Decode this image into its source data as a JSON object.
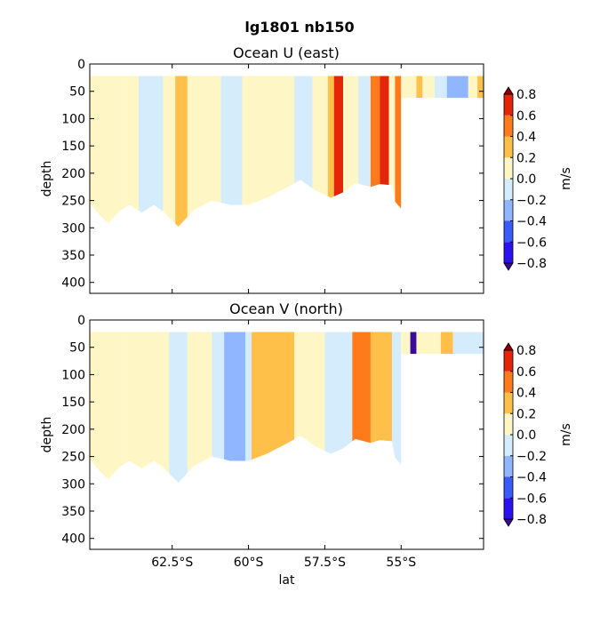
{
  "figure": {
    "suptitle": "lg1801 nb150"
  },
  "colors": {
    "levels": [
      -0.8,
      -0.6,
      -0.4,
      -0.2,
      0.0,
      0.2,
      0.4,
      0.6,
      0.8
    ],
    "bands": [
      "#2b13f0",
      "#3a5cf8",
      "#8fb6ff",
      "#d4ecfb",
      "#fff6c6",
      "#ffc04a",
      "#ff7a1a",
      "#e2260a"
    ],
    "under": "#3a0a9a",
    "over": "#8b0000"
  },
  "chart_data": [
    {
      "type": "heatmap",
      "title": "Ocean U (east)",
      "xlabel": "",
      "ylabel": "depth",
      "xlim": [
        -65.2,
        -52.3
      ],
      "ylim": [
        420,
        0
      ],
      "x_ticks": [
        -62.5,
        -60,
        -57.5,
        -55
      ],
      "x_ticklabels": [
        "",
        "",
        "",
        ""
      ],
      "y_ticks": [
        0,
        50,
        100,
        150,
        200,
        250,
        300,
        350,
        400
      ],
      "y_ticklabels": [
        "0",
        "50",
        "100",
        "150",
        "200",
        "250",
        "300",
        "350",
        "400"
      ],
      "colorbar": {
        "label": "m/s",
        "ticklabels": [
          "0.8",
          "0.6",
          "0.4",
          "0.2",
          "0.0",
          "−0.2",
          "−0.4",
          "−0.6",
          "−0.8"
        ],
        "extend": "both"
      },
      "top_depth": 22,
      "bottom_depth": [
        [
          -65.2,
          255
        ],
        [
          -64.9,
          275
        ],
        [
          -64.6,
          292
        ],
        [
          -64.2,
          268
        ],
        [
          -63.9,
          258
        ],
        [
          -63.5,
          272
        ],
        [
          -63.1,
          258
        ],
        [
          -62.8,
          270
        ],
        [
          -62.3,
          298
        ],
        [
          -61.8,
          268
        ],
        [
          -61.2,
          250
        ],
        [
          -60.6,
          258
        ],
        [
          -60.0,
          258
        ],
        [
          -59.4,
          245
        ],
        [
          -58.8,
          228
        ],
        [
          -58.3,
          212
        ],
        [
          -57.8,
          232
        ],
        [
          -57.3,
          245
        ],
        [
          -56.9,
          235
        ],
        [
          -56.5,
          218
        ],
        [
          -56.0,
          225
        ],
        [
          -55.7,
          220
        ],
        [
          -55.3,
          222
        ],
        [
          -55.2,
          252
        ],
        [
          -55.0,
          265
        ]
      ],
      "shallow_section": {
        "xrange": [
          -55.0,
          -52.3
        ],
        "bottom_depth": 62
      },
      "bands": [
        {
          "x": [
            -65.2,
            -64.1
          ],
          "v": 0.1
        },
        {
          "x": [
            -64.1,
            -63.6
          ],
          "v": 0.1
        },
        {
          "x": [
            -63.6,
            -62.8
          ],
          "v": -0.1
        },
        {
          "x": [
            -62.8,
            -62.4
          ],
          "v": 0.1
        },
        {
          "x": [
            -62.4,
            -62.0
          ],
          "v": 0.3
        },
        {
          "x": [
            -62.0,
            -60.9
          ],
          "v": 0.1
        },
        {
          "x": [
            -60.9,
            -60.2
          ],
          "v": -0.1
        },
        {
          "x": [
            -60.2,
            -59.2
          ],
          "v": 0.1
        },
        {
          "x": [
            -59.2,
            -58.5
          ],
          "v": 0.1
        },
        {
          "x": [
            -58.5,
            -57.9
          ],
          "v": -0.1
        },
        {
          "x": [
            -57.9,
            -57.4
          ],
          "v": 0.1
        },
        {
          "x": [
            -57.4,
            -57.2
          ],
          "v": 0.3
        },
        {
          "x": [
            -57.2,
            -56.9
          ],
          "v": 0.7
        },
        {
          "x": [
            -56.9,
            -56.4
          ],
          "v": 0.1
        },
        {
          "x": [
            -56.4,
            -56.0
          ],
          "v": -0.1
        },
        {
          "x": [
            -56.0,
            -55.7
          ],
          "v": 0.5
        },
        {
          "x": [
            -55.7,
            -55.4
          ],
          "v": 0.7
        },
        {
          "x": [
            -55.4,
            -55.0
          ],
          "v": 0.1
        },
        {
          "x": [
            -55.2,
            -55.0
          ],
          "v": 0.5
        }
      ],
      "shallow_bands": [
        {
          "x": [
            -55.0,
            -54.5
          ],
          "v": 0.1
        },
        {
          "x": [
            -54.5,
            -54.3
          ],
          "v": 0.3
        },
        {
          "x": [
            -54.3,
            -53.9
          ],
          "v": 0.1
        },
        {
          "x": [
            -53.9,
            -53.5
          ],
          "v": -0.1
        },
        {
          "x": [
            -53.5,
            -52.8
          ],
          "v": -0.3
        },
        {
          "x": [
            -52.8,
            -52.5
          ],
          "v": 0.1
        },
        {
          "x": [
            -52.5,
            -52.3
          ],
          "v": 0.3
        }
      ]
    },
    {
      "type": "heatmap",
      "title": "Ocean V (north)",
      "xlabel": "lat",
      "ylabel": "depth",
      "xlim": [
        -65.2,
        -52.3
      ],
      "ylim": [
        420,
        0
      ],
      "x_ticks": [
        -62.5,
        -60,
        -57.5,
        -55
      ],
      "x_ticklabels": [
        "62.5°S",
        "60°S",
        "57.5°S",
        "55°S"
      ],
      "y_ticks": [
        0,
        50,
        100,
        150,
        200,
        250,
        300,
        350,
        400
      ],
      "y_ticklabels": [
        "0",
        "50",
        "100",
        "150",
        "200",
        "250",
        "300",
        "350",
        "400"
      ],
      "colorbar": {
        "label": "m/s",
        "ticklabels": [
          "0.8",
          "0.6",
          "0.4",
          "0.2",
          "0.0",
          "−0.2",
          "−0.4",
          "−0.6",
          "−0.8"
        ],
        "extend": "both"
      },
      "top_depth": 22,
      "bottom_depth": [
        [
          -65.2,
          255
        ],
        [
          -64.9,
          275
        ],
        [
          -64.6,
          292
        ],
        [
          -64.2,
          268
        ],
        [
          -63.9,
          258
        ],
        [
          -63.5,
          272
        ],
        [
          -63.1,
          258
        ],
        [
          -62.8,
          270
        ],
        [
          -62.3,
          298
        ],
        [
          -61.8,
          268
        ],
        [
          -61.2,
          250
        ],
        [
          -60.6,
          258
        ],
        [
          -60.0,
          258
        ],
        [
          -59.4,
          245
        ],
        [
          -58.8,
          228
        ],
        [
          -58.3,
          212
        ],
        [
          -57.8,
          232
        ],
        [
          -57.3,
          245
        ],
        [
          -56.9,
          235
        ],
        [
          -56.5,
          218
        ],
        [
          -56.0,
          225
        ],
        [
          -55.7,
          220
        ],
        [
          -55.3,
          222
        ],
        [
          -55.2,
          252
        ],
        [
          -55.0,
          265
        ]
      ],
      "shallow_section": {
        "xrange": [
          -55.0,
          -52.3
        ],
        "bottom_depth": 62
      },
      "bands": [
        {
          "x": [
            -65.2,
            -64.1
          ],
          "v": 0.1
        },
        {
          "x": [
            -64.1,
            -63.6
          ],
          "v": 0.1
        },
        {
          "x": [
            -63.6,
            -62.6
          ],
          "v": 0.1
        },
        {
          "x": [
            -62.6,
            -62.0
          ],
          "v": -0.1
        },
        {
          "x": [
            -62.0,
            -61.2
          ],
          "v": 0.1
        },
        {
          "x": [
            -61.2,
            -60.8
          ],
          "v": -0.1
        },
        {
          "x": [
            -60.8,
            -60.1
          ],
          "v": -0.3
        },
        {
          "x": [
            -60.1,
            -59.9
          ],
          "v": -0.1
        },
        {
          "x": [
            -59.9,
            -58.5
          ],
          "v": 0.3
        },
        {
          "x": [
            -58.5,
            -57.5
          ],
          "v": 0.1
        },
        {
          "x": [
            -57.5,
            -56.6
          ],
          "v": -0.1
        },
        {
          "x": [
            -56.6,
            -56.0
          ],
          "v": 0.5
        },
        {
          "x": [
            -56.0,
            -55.3
          ],
          "v": 0.3
        },
        {
          "x": [
            -55.3,
            -55.0
          ],
          "v": -0.1
        }
      ],
      "shallow_bands": [
        {
          "x": [
            -55.0,
            -54.7
          ],
          "v": 0.1
        },
        {
          "x": [
            -54.7,
            -54.5
          ],
          "v": -0.9
        },
        {
          "x": [
            -54.5,
            -53.7
          ],
          "v": 0.1
        },
        {
          "x": [
            -53.7,
            -53.3
          ],
          "v": 0.3
        },
        {
          "x": [
            -53.3,
            -52.3
          ],
          "v": -0.1
        }
      ]
    }
  ]
}
